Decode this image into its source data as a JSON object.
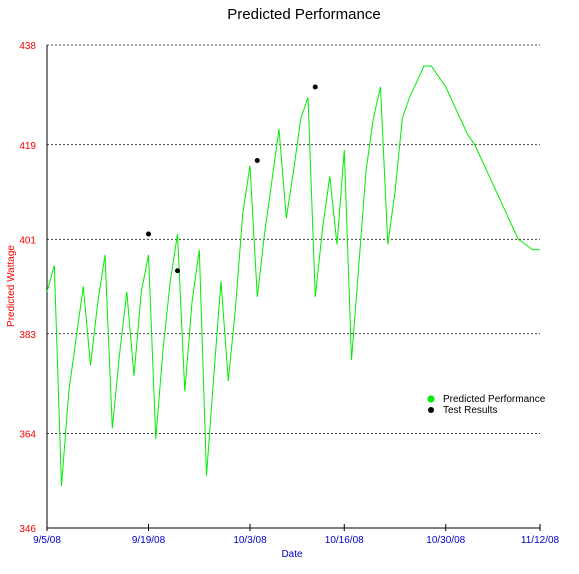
{
  "chart_data": {
    "type": "line",
    "title": "Predicted Performance",
    "xlabel": "Date",
    "ylabel": "Predicted Wattage",
    "ylim": [
      346,
      438
    ],
    "yticks": [
      346,
      364,
      383,
      401,
      419,
      438
    ],
    "xlim": [
      "2008-09-05",
      "2008-11-12"
    ],
    "xticks": [
      {
        "date": "2008-09-05",
        "label": "9/5/08"
      },
      {
        "date": "2008-09-19",
        "label": "9/19/08"
      },
      {
        "date": "2008-10-03",
        "label": "10/3/08"
      },
      {
        "date": "2008-10-16",
        "label": "10/16/08"
      },
      {
        "date": "2008-10-30",
        "label": "10/30/08"
      },
      {
        "date": "2008-11-12",
        "label": "11/12/08"
      }
    ],
    "grid": "horizontal dashed",
    "legend_position": "right",
    "series": [
      {
        "name": "Predicted Performance",
        "type": "line",
        "color": "#00ee00",
        "x": [
          "2008-09-05",
          "2008-09-06",
          "2008-09-07",
          "2008-09-08",
          "2008-09-09",
          "2008-09-10",
          "2008-09-11",
          "2008-09-12",
          "2008-09-13",
          "2008-09-14",
          "2008-09-15",
          "2008-09-16",
          "2008-09-17",
          "2008-09-18",
          "2008-09-19",
          "2008-09-20",
          "2008-09-21",
          "2008-09-22",
          "2008-09-23",
          "2008-09-24",
          "2008-09-25",
          "2008-09-26",
          "2008-09-27",
          "2008-09-28",
          "2008-09-29",
          "2008-09-30",
          "2008-10-01",
          "2008-10-02",
          "2008-10-03",
          "2008-10-04",
          "2008-10-05",
          "2008-10-06",
          "2008-10-07",
          "2008-10-08",
          "2008-10-09",
          "2008-10-10",
          "2008-10-11",
          "2008-10-12",
          "2008-10-13",
          "2008-10-14",
          "2008-10-15",
          "2008-10-16",
          "2008-10-17",
          "2008-10-18",
          "2008-10-19",
          "2008-10-20",
          "2008-10-21",
          "2008-10-22",
          "2008-10-23",
          "2008-10-24",
          "2008-10-25",
          "2008-10-26",
          "2008-10-27",
          "2008-10-28",
          "2008-10-29",
          "2008-10-30",
          "2008-10-31",
          "2008-11-01",
          "2008-11-02",
          "2008-11-03",
          "2008-11-04",
          "2008-11-05",
          "2008-11-06",
          "2008-11-07",
          "2008-11-08",
          "2008-11-09",
          "2008-11-10",
          "2008-11-11",
          "2008-11-12"
        ],
        "values": [
          391,
          396,
          354,
          372,
          382,
          392,
          377,
          389,
          398,
          365,
          379,
          391,
          375,
          391,
          398,
          363,
          380,
          393,
          402,
          372,
          389,
          399,
          356,
          375,
          393,
          374,
          388,
          406,
          415,
          390,
          402,
          412,
          422,
          405,
          414,
          424,
          428,
          390,
          403,
          413,
          400,
          418,
          378,
          396,
          414,
          424,
          430,
          400,
          410,
          424,
          428,
          431,
          434,
          434,
          432,
          430,
          427,
          424,
          421,
          419,
          416,
          413,
          410,
          407,
          404,
          401,
          400,
          399,
          399
        ]
      },
      {
        "name": "Test Results",
        "type": "scatter",
        "color": "#000000",
        "x": [
          "2008-09-19",
          "2008-09-23",
          "2008-10-04",
          "2008-10-12"
        ],
        "values": [
          402,
          395,
          416,
          430
        ]
      }
    ]
  }
}
